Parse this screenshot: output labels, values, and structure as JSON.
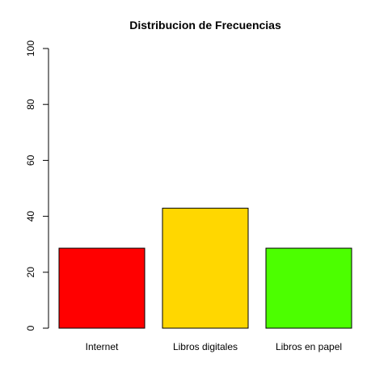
{
  "chart_data": {
    "type": "bar",
    "title": "Distribucion de Frecuencias",
    "xlabel": "",
    "ylabel": "",
    "categories": [
      "Internet",
      "Libros digitales",
      "Libros en papel"
    ],
    "values": [
      28.6,
      42.9,
      28.6
    ],
    "colors": [
      "#ff0000",
      "#ffd700",
      "#4cff00"
    ],
    "ylim": [
      0,
      100
    ],
    "yticks": [
      0,
      20,
      40,
      60,
      80,
      100
    ],
    "grid": false,
    "legend": "none"
  }
}
